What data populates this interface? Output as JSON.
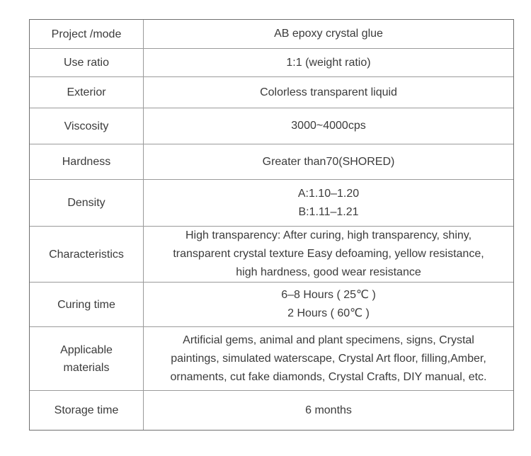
{
  "table": {
    "border_color_outer": "#6f6f6f",
    "border_color_inner": "#9a9a9a",
    "text_color": "#3b3b3b",
    "background": "#ffffff",
    "rows": [
      {
        "label": "Project /mode",
        "value": "AB epoxy crystal glue"
      },
      {
        "label": "Use ratio",
        "value": "1:1 (weight ratio)"
      },
      {
        "label": "Exterior",
        "value": "Colorless transparent liquid"
      },
      {
        "label": "Viscosity",
        "value": "3000~4000cps"
      },
      {
        "label": "Hardness",
        "value": "Greater than70(SHORED)"
      },
      {
        "label": "Density",
        "value": "A:1.10–1.20\nB:1.11–1.21"
      },
      {
        "label": "Characteristics",
        "value": "High transparency: After curing, high transparency, shiny,\ntransparent crystal texture Easy defoaming, yellow resistance,\nhigh hardness, good wear resistance"
      },
      {
        "label": "Curing time",
        "value": "6–8 Hours ( 25℃ )\n2 Hours ( 60℃ )"
      },
      {
        "label": "Applicable\nmaterials",
        "value": "Artificial gems, animal and plant specimens, signs, Crystal\npaintings, simulated waterscape, Crystal Art floor, filling,Amber,\nornaments, cut fake diamonds,  Crystal Crafts, DIY manual, etc."
      },
      {
        "label": "Storage time",
        "value": "6 months"
      }
    ]
  }
}
